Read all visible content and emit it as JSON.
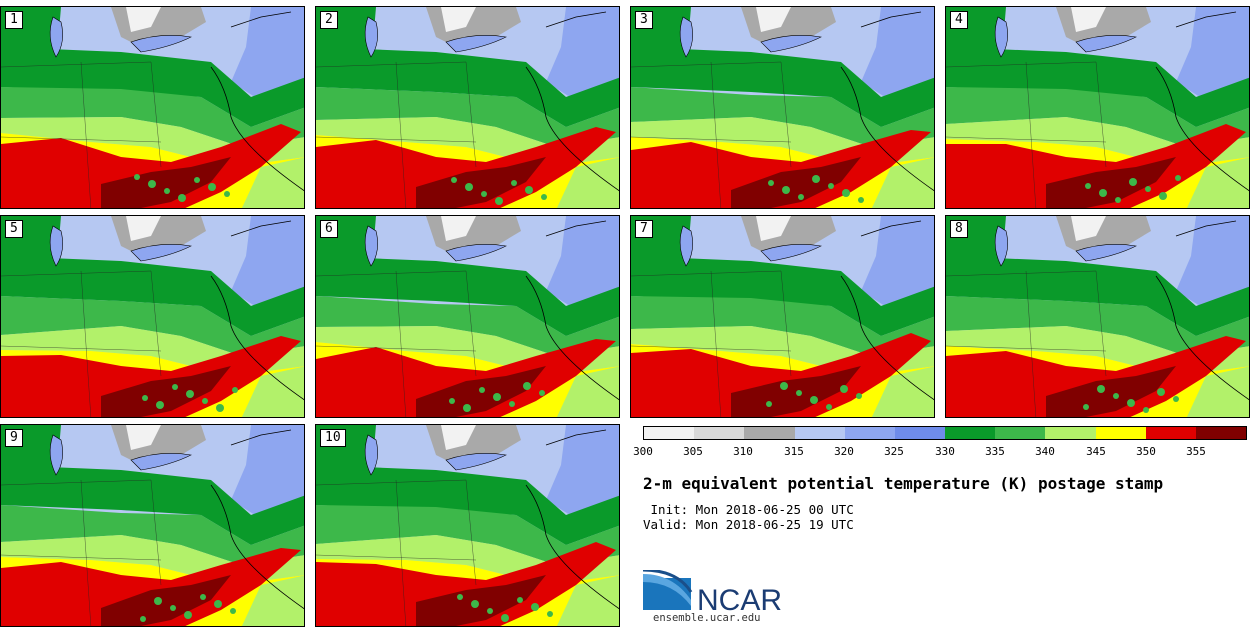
{
  "panels": [
    {
      "member": "1"
    },
    {
      "member": "2"
    },
    {
      "member": "3"
    },
    {
      "member": "4"
    },
    {
      "member": "5"
    },
    {
      "member": "6"
    },
    {
      "member": "7"
    },
    {
      "member": "8"
    },
    {
      "member": "9"
    },
    {
      "member": "10"
    }
  ],
  "colorbar": {
    "colors": [
      "#f2f2f2",
      "#d9d9d9",
      "#a9a9a9",
      "#b6c8f2",
      "#8ea6f0",
      "#6f8cea",
      "#0a9a2a",
      "#3db84a",
      "#b2f16a",
      "#ffff00",
      "#e00000",
      "#800000"
    ],
    "ticks": [
      "300",
      "305",
      "310",
      "315",
      "320",
      "325",
      "330",
      "335",
      "340",
      "345",
      "350",
      "355"
    ]
  },
  "title": "2-m equivalent potential temperature (K) postage stamp",
  "init_line": " Init: Mon 2018-06-25 00 UTC",
  "valid_line": "Valid: Mon 2018-06-25 19 UTC",
  "logo": {
    "text": "NCAR",
    "url": "ensemble.ucar.edu"
  }
}
